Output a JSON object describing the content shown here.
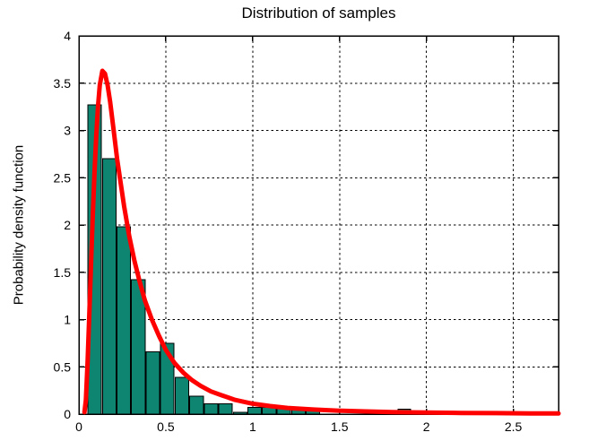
{
  "chart_data": {
    "type": "histogram",
    "title": "Distribution of samples",
    "xlabel": "",
    "ylabel": "Probability density function",
    "xlim": [
      0,
      2.76
    ],
    "ylim": [
      0,
      4
    ],
    "xtick_values": [
      0,
      0.5,
      1,
      1.5,
      2,
      2.5
    ],
    "xtick_labels": [
      "0",
      "0.5",
      "1",
      "1.5",
      "2",
      "2.5"
    ],
    "ytick_values": [
      0,
      0.5,
      1,
      1.5,
      2,
      2.5,
      3,
      3.5,
      4
    ],
    "ytick_labels": [
      "0",
      "0.5",
      "1",
      "1.5",
      "2",
      "2.5",
      "3",
      "3.5",
      "4"
    ],
    "grid": true,
    "grid_style": "dashed",
    "colors": {
      "background": "#FFFFFF",
      "axis": "#000000",
      "grid": "#000000",
      "bar_fill": "#0E8570",
      "bar_edge": "#000000",
      "curve": "#FF0000"
    },
    "bars": {
      "columns": [
        "x_left",
        "x_right",
        "height"
      ],
      "rows": [
        [
          0.052,
          0.13,
          3.27
        ],
        [
          0.136,
          0.214,
          2.7
        ],
        [
          0.219,
          0.297,
          1.98
        ],
        [
          0.303,
          0.381,
          1.42
        ],
        [
          0.387,
          0.465,
          0.66
        ],
        [
          0.47,
          0.548,
          0.75
        ],
        [
          0.554,
          0.632,
          0.39
        ],
        [
          0.638,
          0.716,
          0.19
        ],
        [
          0.721,
          0.799,
          0.11
        ],
        [
          0.805,
          0.883,
          0.11
        ],
        [
          0.889,
          0.967,
          0.02
        ],
        [
          0.972,
          1.05,
          0.07
        ],
        [
          1.056,
          1.134,
          0.07
        ],
        [
          1.14,
          1.218,
          0.06
        ],
        [
          1.224,
          1.302,
          0.05
        ],
        [
          1.307,
          1.385,
          0.04
        ],
        [
          1.836,
          1.908,
          0.05
        ]
      ]
    },
    "curve": {
      "name": "fitted-pdf",
      "line_width": 5,
      "points": [
        [
          0.032,
          0.02
        ],
        [
          0.04,
          0.15
        ],
        [
          0.05,
          0.55
        ],
        [
          0.06,
          1.05
        ],
        [
          0.07,
          1.6
        ],
        [
          0.08,
          2.1
        ],
        [
          0.09,
          2.55
        ],
        [
          0.1,
          2.95
        ],
        [
          0.11,
          3.25
        ],
        [
          0.12,
          3.48
        ],
        [
          0.135,
          3.63
        ],
        [
          0.15,
          3.6
        ],
        [
          0.165,
          3.48
        ],
        [
          0.18,
          3.3
        ],
        [
          0.2,
          3.0
        ],
        [
          0.22,
          2.7
        ],
        [
          0.24,
          2.45
        ],
        [
          0.26,
          2.2
        ],
        [
          0.29,
          1.88
        ],
        [
          0.32,
          1.62
        ],
        [
          0.35,
          1.4
        ],
        [
          0.38,
          1.2
        ],
        [
          0.42,
          1.0
        ],
        [
          0.46,
          0.83
        ],
        [
          0.5,
          0.68
        ],
        [
          0.55,
          0.54
        ],
        [
          0.6,
          0.44
        ],
        [
          0.65,
          0.36
        ],
        [
          0.7,
          0.3
        ],
        [
          0.76,
          0.24
        ],
        [
          0.82,
          0.2
        ],
        [
          0.9,
          0.15
        ],
        [
          1.0,
          0.11
        ],
        [
          1.1,
          0.085
        ],
        [
          1.2,
          0.065
        ],
        [
          1.35,
          0.048
        ],
        [
          1.5,
          0.036
        ],
        [
          1.65,
          0.028
        ],
        [
          1.8,
          0.022
        ],
        [
          2.0,
          0.016
        ],
        [
          2.2,
          0.012
        ],
        [
          2.4,
          0.01
        ],
        [
          2.6,
          0.008
        ],
        [
          2.76,
          0.007
        ]
      ]
    }
  }
}
